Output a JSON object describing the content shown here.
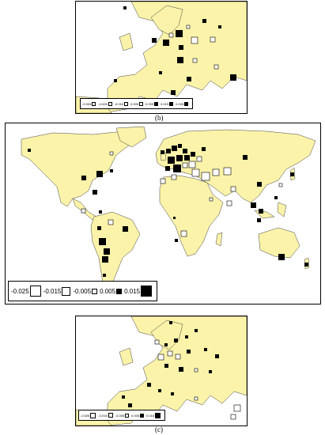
{
  "captions": {
    "b": "(b)",
    "c": "(c)"
  },
  "legend_main": [
    "-0.025",
    "-0.015",
    "-0.005",
    "0.005",
    "0.015"
  ],
  "legend_small_b": [
    "-0.026",
    "-0.026",
    "-0.016",
    "0.005",
    "0.005",
    "0.015",
    "0.026"
  ],
  "legend_small_c": [
    "-0.026",
    "-0.016",
    "-0.006",
    "0.006",
    "0.016"
  ],
  "colors": {
    "land": "#fbf3a9",
    "positive": "#000000",
    "negative": "#ffffff",
    "border": "#444444"
  }
}
